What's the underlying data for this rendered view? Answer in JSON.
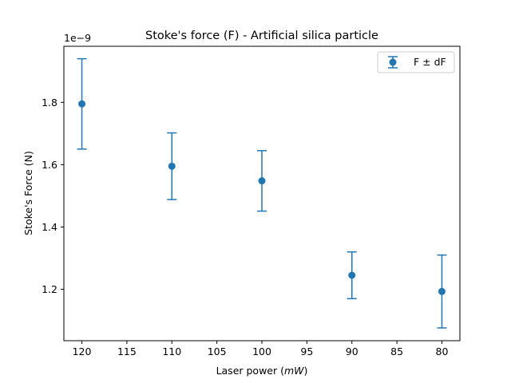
{
  "chart_data": {
    "type": "scatter",
    "title": "Stoke's force (F) - Artificial silica particle",
    "xlabel_prefix": "Laser power (",
    "xlabel_unit": "mW",
    "xlabel_suffix": ")",
    "ylabel": "Stoke's Force (N)",
    "y_scale_label": "1e−9",
    "x_reversed": true,
    "xlim": [
      122,
      78
    ],
    "ylim": [
      1.035,
      1.98
    ],
    "x_ticks": [
      120,
      115,
      110,
      105,
      100,
      95,
      90,
      85,
      80
    ],
    "y_ticks": [
      1.2,
      1.4,
      1.6,
      1.8
    ],
    "y_tick_labels": [
      "1.2",
      "1.4",
      "1.6",
      "1.8"
    ],
    "series": [
      {
        "name": "F ± dF",
        "color": "#1f77b4",
        "x": [
          120,
          110,
          100,
          90,
          80
        ],
        "y": [
          1.795,
          1.595,
          1.548,
          1.245,
          1.193
        ],
        "yerr": [
          0.145,
          0.107,
          0.097,
          0.075,
          0.117
        ]
      }
    ],
    "legend_label": "F ± dF",
    "legend_position": "upper right",
    "grid": false
  }
}
